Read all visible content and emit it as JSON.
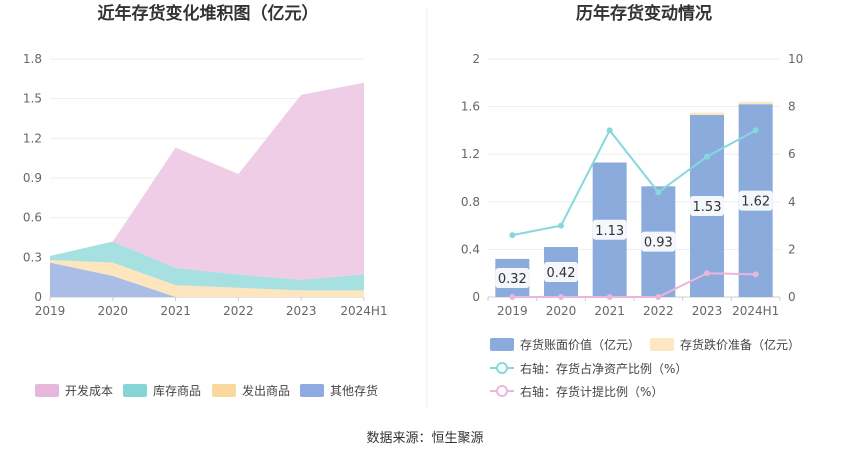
{
  "footer": {
    "source": "数据来源：恒生聚源"
  },
  "chart_data": [
    {
      "type": "area",
      "stacked": true,
      "title": "近年存货变化堆积图（亿元）",
      "categories": [
        "2019",
        "2020",
        "2021",
        "2022",
        "2023",
        "2024H1"
      ],
      "ylim": [
        0,
        1.8
      ],
      "yticks": [
        "0",
        "0.3",
        "0.6",
        "0.9",
        "1.2",
        "1.5",
        "1.8"
      ],
      "grid": true,
      "legend_position": "bottom",
      "series": [
        {
          "name": "其他存货",
          "color": "#a9bde6",
          "values": [
            0.26,
            0.16,
            0.0,
            0.0,
            0.0,
            0.0
          ]
        },
        {
          "name": "发出商品",
          "color": "#fde5bd",
          "values": [
            0.02,
            0.1,
            0.09,
            0.07,
            0.05,
            0.05
          ]
        },
        {
          "name": "库存商品",
          "color": "#a6e0e1",
          "values": [
            0.03,
            0.16,
            0.13,
            0.1,
            0.08,
            0.12
          ]
        },
        {
          "name": "开发成本",
          "color": "#f0cde6",
          "values": [
            0.0,
            0.0,
            0.91,
            0.76,
            1.4,
            1.45
          ]
        }
      ],
      "legend": [
        {
          "name": "开发成本",
          "color": "#e7b6dd"
        },
        {
          "name": "库存商品",
          "color": "#87d4d6"
        },
        {
          "name": "发出商品",
          "color": "#fbd89b"
        },
        {
          "name": "其他存货",
          "color": "#8eaadf"
        }
      ]
    },
    {
      "type": "bar",
      "title": "历年存货变动情况",
      "categories": [
        "2019",
        "2020",
        "2021",
        "2022",
        "2023",
        "2024H1"
      ],
      "ylim": [
        0,
        2
      ],
      "yticks": [
        "0",
        "0.4",
        "0.8",
        "1.2",
        "1.6",
        "2"
      ],
      "y2lim": [
        0,
        10
      ],
      "y2ticks": [
        "0",
        "2",
        "4",
        "6",
        "8",
        "10"
      ],
      "grid": true,
      "legend_position": "bottom",
      "series": [
        {
          "name": "存货账面价值（亿元）",
          "kind": "bar",
          "color": "#8aabdc",
          "values": [
            0.32,
            0.42,
            1.13,
            0.93,
            1.53,
            1.62
          ],
          "labels": [
            "0.32",
            "0.42",
            "1.13",
            "0.93",
            "1.53",
            "1.62"
          ]
        },
        {
          "name": "存货跌价准备（亿元）",
          "kind": "bar",
          "color": "#fce7c2",
          "values": [
            0,
            0,
            0,
            0,
            0.02,
            0.02
          ]
        },
        {
          "name": "右轴：存货占净资产比例（%）",
          "kind": "line",
          "axis": "right",
          "color": "#86d8dc",
          "values": [
            2.6,
            3.0,
            7.0,
            4.4,
            5.9,
            7.0
          ]
        },
        {
          "name": "右轴：存货计提比例（%）",
          "kind": "line",
          "axis": "right",
          "color": "#e9b7dc",
          "values": [
            0,
            0,
            0,
            0,
            1.0,
            0.95
          ]
        }
      ]
    }
  ]
}
